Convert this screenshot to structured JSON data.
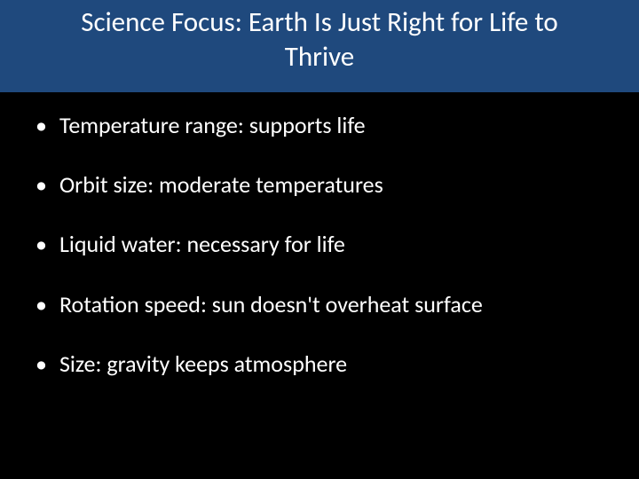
{
  "slide": {
    "title": "Science Focus: Earth Is Just Right for Life to Thrive",
    "bullets": [
      "Temperature range: supports life",
      "Orbit size: moderate temperatures",
      "Liquid water: necessary for life",
      "Rotation speed: sun doesn't overheat surface",
      "Size: gravity keeps atmosphere"
    ]
  },
  "style": {
    "background_color": "#000000",
    "title_band_color": "#1f497d",
    "title_text_color": "#ffffff",
    "body_text_color": "#ffffff",
    "title_fontsize": 31,
    "body_fontsize": 26,
    "bullet_marker": "•"
  }
}
